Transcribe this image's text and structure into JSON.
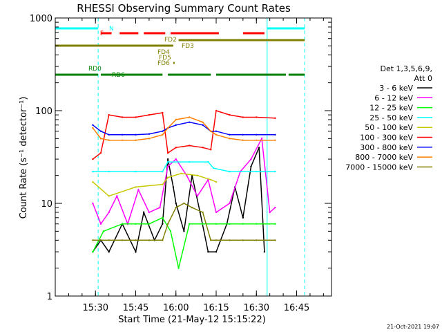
{
  "chart_data": {
    "type": "line",
    "title": "RHESSI Observing Summary Count Rates",
    "xlabel": "Start Time (21-May-12 15:15:22)",
    "ylabel": "Count Rate (s⁻¹ detector⁻¹)",
    "y_scale": "log",
    "ylim": [
      1,
      1000
    ],
    "xlim": [
      "15:15",
      "16:58"
    ],
    "x_ticks": [
      "15:30",
      "15:45",
      "16:00",
      "16:15",
      "16:30",
      "16:45"
    ],
    "y_ticks": [
      "1",
      "10",
      "100",
      "1000"
    ],
    "legend_title": "Det 1,3,5,6,9, Att 0",
    "legend_placement": "right",
    "timestamp": "21-Oct-2021 19:07",
    "series": [
      {
        "name": "3 - 6 keV",
        "color": "#000000",
        "x": [
          "15:29",
          "15:32",
          "15:35",
          "15:40",
          "15:45",
          "15:48",
          "15:52",
          "15:55",
          "15:57",
          "15:59",
          "16:00",
          "16:03",
          "16:06",
          "16:09",
          "16:12",
          "16:15",
          "16:19",
          "16:22",
          "16:25",
          "16:28",
          "16:31",
          "16:33"
        ],
        "values": [
          3,
          4,
          3,
          6,
          3,
          8,
          4,
          6,
          30,
          15,
          10,
          5,
          20,
          8,
          3,
          3,
          6,
          15,
          7,
          25,
          40,
          3
        ]
      },
      {
        "name": "6 - 12 keV",
        "color": "#ff00ff",
        "x": [
          "15:29",
          "15:32",
          "15:35",
          "15:38",
          "15:42",
          "15:46",
          "15:50",
          "15:54",
          "15:57",
          "16:00",
          "16:04",
          "16:08",
          "16:12",
          "16:15",
          "16:20",
          "16:24",
          "16:28",
          "16:32",
          "16:35",
          "16:37"
        ],
        "values": [
          10,
          6,
          8,
          12,
          6,
          14,
          8,
          9,
          25,
          30,
          20,
          12,
          18,
          8,
          10,
          22,
          30,
          50,
          8,
          9
        ]
      },
      {
        "name": "12 - 25 keV",
        "color": "#00ff00",
        "x": [
          "15:29",
          "15:33",
          "15:40",
          "15:45",
          "15:50",
          "15:55",
          "15:58",
          "16:01",
          "16:05",
          "16:10",
          "16:15",
          "16:20",
          "16:25",
          "16:30",
          "16:37"
        ],
        "values": [
          3,
          5,
          6,
          6,
          6,
          7,
          5,
          2,
          6,
          6,
          6,
          6,
          6,
          6,
          6
        ]
      },
      {
        "name": "25 - 50 keV",
        "color": "#00ffff",
        "x": [
          "15:29",
          "15:35",
          "15:45",
          "15:55",
          "15:57",
          "16:05",
          "16:12",
          "16:14",
          "16:20",
          "16:30",
          "16:37"
        ],
        "values": [
          22,
          22,
          22,
          22,
          28,
          28,
          28,
          24,
          22,
          22,
          22
        ]
      },
      {
        "name": "50 - 100 keV",
        "color": "#c8c800",
        "x": [
          "15:29",
          "15:35",
          "15:45",
          "15:55",
          "15:57",
          "16:02",
          "16:08",
          "16:13",
          "16:15"
        ],
        "values": [
          17,
          12,
          15,
          16,
          19,
          21,
          20,
          18,
          17
        ]
      },
      {
        "name": "100 - 300 keV",
        "color": "#ff0000",
        "x": [
          "15:29",
          "15:32",
          "15:35",
          "15:40",
          "15:45",
          "15:50",
          "15:55",
          "15:57",
          "16:00",
          "16:05",
          "16:10",
          "16:13",
          "16:15",
          "16:20",
          "16:25",
          "16:30",
          "16:37"
        ],
        "values": [
          30,
          35,
          90,
          85,
          85,
          90,
          95,
          35,
          40,
          42,
          40,
          38,
          100,
          90,
          85,
          85,
          83
        ]
      },
      {
        "name": "300 - 800 keV",
        "color": "#0000ff",
        "x": [
          "15:29",
          "15:32",
          "15:35",
          "15:40",
          "15:45",
          "15:50",
          "15:55",
          "15:57",
          "16:00",
          "16:05",
          "16:10",
          "16:13",
          "16:15",
          "16:20",
          "16:25",
          "16:30",
          "16:37"
        ],
        "values": [
          70,
          60,
          55,
          55,
          55,
          56,
          60,
          65,
          70,
          75,
          70,
          60,
          60,
          55,
          55,
          55,
          55
        ]
      },
      {
        "name": "800 - 7000 keV",
        "color": "#ff8000",
        "x": [
          "15:29",
          "15:32",
          "15:35",
          "15:40",
          "15:45",
          "15:50",
          "15:55",
          "15:57",
          "16:00",
          "16:05",
          "16:10",
          "16:13",
          "16:15",
          "16:20",
          "16:25",
          "16:30",
          "16:37"
        ],
        "values": [
          65,
          50,
          48,
          48,
          48,
          50,
          55,
          65,
          80,
          85,
          75,
          60,
          55,
          50,
          48,
          48,
          48
        ]
      },
      {
        "name": "7000 - 15000 keV",
        "color": "#808000",
        "x": [
          "15:29",
          "15:35",
          "15:40",
          "15:45",
          "15:50",
          "15:55",
          "15:57",
          "16:00",
          "16:03",
          "16:06",
          "16:10",
          "16:13",
          "16:15",
          "16:20",
          "16:25",
          "16:30",
          "16:37"
        ],
        "values": [
          4,
          4,
          4,
          4,
          4,
          4,
          6,
          9,
          10,
          9,
          8,
          4,
          4,
          4,
          4,
          4,
          4
        ]
      }
    ],
    "flags": [
      {
        "label": "N",
        "color": "#00ffff",
        "segments": [
          [
            "15:15",
            "15:31"
          ],
          [
            "16:34",
            "16:48"
          ]
        ]
      },
      {
        "label": "F",
        "color": "#ff0000",
        "segments": [
          [
            "15:32",
            "15:36"
          ],
          [
            "15:39",
            "15:46"
          ],
          [
            "15:48",
            "15:56"
          ],
          [
            "15:58",
            "16:16"
          ],
          [
            "16:25",
            "16:33"
          ]
        ]
      },
      {
        "label": "FD2",
        "color": "#808000",
        "segments": [
          [
            "15:15",
            "15:59"
          ]
        ]
      },
      {
        "label": "FD3",
        "color": "#808000",
        "segments": [
          [
            "16:01",
            "16:48"
          ]
        ]
      },
      {
        "label": "FD4",
        "color": "#808000",
        "segments": []
      },
      {
        "label": "FD5",
        "color": "#808000",
        "segments": []
      },
      {
        "label": "FD6",
        "color": "#808000",
        "segments": [
          [
            "15:59",
            "15:59"
          ]
        ]
      },
      {
        "label": "RD0",
        "color": "#008000",
        "segments": [
          [
            "15:15",
            "15:31"
          ],
          [
            "15:32",
            "15:55"
          ],
          [
            "15:57",
            "16:13"
          ],
          [
            "16:15",
            "16:41"
          ],
          [
            "16:42",
            "16:48"
          ]
        ]
      },
      {
        "label": "RD6",
        "color": "#008000",
        "segments": []
      }
    ],
    "vertical_markers": [
      {
        "time": "15:15",
        "color": "#00ffff",
        "style": "solid"
      },
      {
        "time": "15:31",
        "color": "#00ffff",
        "style": "dashed"
      },
      {
        "time": "16:34",
        "color": "#00ffff",
        "style": "solid"
      },
      {
        "time": "16:48",
        "color": "#00ffff",
        "style": "dashed"
      }
    ]
  }
}
